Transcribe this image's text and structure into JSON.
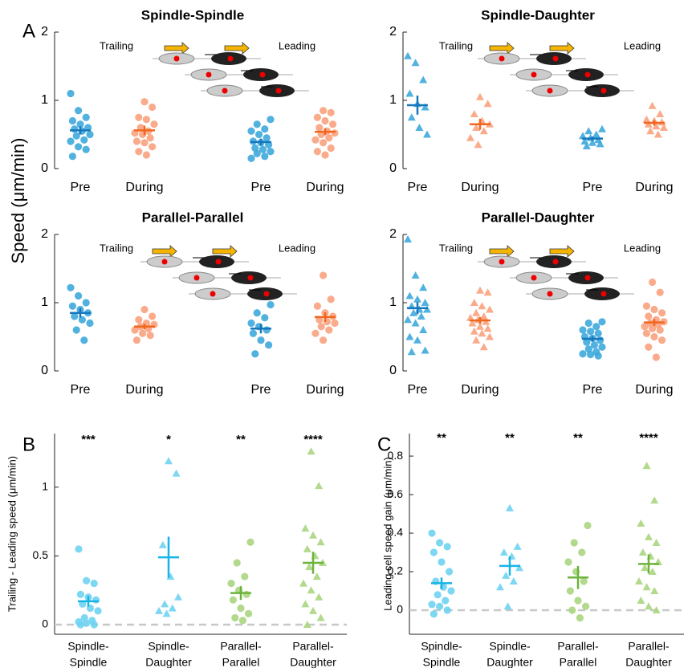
{
  "chart_data": [
    {
      "type": "strip",
      "panel_label": "A",
      "title": "Spindle-Spindle",
      "ylabel": "Speed (μm/min)",
      "annotations": [
        "Trailing",
        "Leading"
      ],
      "categories": [
        "Pre",
        "During",
        "Pre",
        "During"
      ],
      "ylim": [
        0,
        2
      ],
      "yticks": [
        0,
        1,
        2
      ],
      "groups": [
        {
          "color": "#3ea8dc",
          "mean_color": "#1677bd",
          "marker": "circle",
          "values": [
            1.1,
            0.85,
            0.75,
            0.7,
            0.65,
            0.6,
            0.58,
            0.55,
            0.5,
            0.48,
            0.42,
            0.4,
            0.32,
            0.28,
            0.18
          ],
          "mean": 0.56,
          "error": 0.06
        },
        {
          "color": "#f9a27e",
          "mean_color": "#f0661e",
          "marker": "circle",
          "values": [
            0.98,
            0.9,
            0.75,
            0.72,
            0.65,
            0.6,
            0.55,
            0.52,
            0.5,
            0.45,
            0.4,
            0.38,
            0.32,
            0.25,
            0.2
          ],
          "mean": 0.56,
          "error": 0.07
        },
        {
          "color": "#3ea8dc",
          "mean_color": "#1677bd",
          "marker": "circle",
          "values": [
            0.72,
            0.65,
            0.58,
            0.55,
            0.5,
            0.45,
            0.4,
            0.38,
            0.35,
            0.3,
            0.28,
            0.25,
            0.22,
            0.18,
            0.15
          ],
          "mean": 0.39,
          "error": 0.05
        },
        {
          "color": "#f9a27e",
          "mean_color": "#f0661e",
          "marker": "circle",
          "values": [
            0.85,
            0.82,
            0.75,
            0.7,
            0.65,
            0.6,
            0.55,
            0.52,
            0.5,
            0.45,
            0.42,
            0.38,
            0.3,
            0.25,
            0.2
          ],
          "mean": 0.54,
          "error": 0.05
        }
      ]
    },
    {
      "type": "strip",
      "title": "Spindle-Daughter",
      "annotations": [
        "Trailing",
        "Leading"
      ],
      "categories": [
        "Pre",
        "During",
        "Pre",
        "During"
      ],
      "ylim": [
        0,
        2
      ],
      "yticks": [
        0,
        1,
        2
      ],
      "groups": [
        {
          "color": "#3ea8dc",
          "mean_color": "#1677bd",
          "marker": "triangle",
          "values": [
            1.65,
            1.55,
            1.3,
            1.1,
            0.95,
            0.9,
            0.75,
            0.6,
            0.5
          ],
          "mean": 0.93,
          "error": 0.14
        },
        {
          "color": "#f9a27e",
          "mean_color": "#f0661e",
          "marker": "triangle",
          "values": [
            1.05,
            0.95,
            0.8,
            0.7,
            0.65,
            0.6,
            0.55,
            0.45,
            0.35
          ],
          "mean": 0.65,
          "error": 0.08
        },
        {
          "color": "#3ea8dc",
          "mean_color": "#1677bd",
          "marker": "triangle",
          "values": [
            0.58,
            0.55,
            0.5,
            0.48,
            0.45,
            0.42,
            0.4,
            0.38,
            0.36,
            0.33
          ],
          "mean": 0.44,
          "error": 0.03
        },
        {
          "color": "#f9a27e",
          "mean_color": "#f0661e",
          "marker": "triangle",
          "values": [
            0.92,
            0.8,
            0.72,
            0.7,
            0.68,
            0.65,
            0.62,
            0.6,
            0.55,
            0.5
          ],
          "mean": 0.67,
          "error": 0.04
        }
      ]
    },
    {
      "type": "strip",
      "title": "Parallel-Parallel",
      "annotations": [
        "Trailing",
        "Leading"
      ],
      "categories": [
        "Pre",
        "During",
        "Pre",
        "During"
      ],
      "ylim": [
        0,
        2
      ],
      "yticks": [
        0,
        1,
        2
      ],
      "groups": [
        {
          "color": "#3ea8dc",
          "mean_color": "#1677bd",
          "marker": "circle",
          "values": [
            1.22,
            1.1,
            1.0,
            0.95,
            0.9,
            0.85,
            0.8,
            0.75,
            0.7,
            0.6,
            0.45
          ],
          "mean": 0.85,
          "error": 0.07
        },
        {
          "color": "#f9a27e",
          "mean_color": "#f0661e",
          "marker": "circle",
          "values": [
            0.9,
            0.8,
            0.75,
            0.7,
            0.68,
            0.65,
            0.62,
            0.6,
            0.55,
            0.52,
            0.45
          ],
          "mean": 0.65,
          "error": 0.04
        },
        {
          "color": "#3ea8dc",
          "mean_color": "#1677bd",
          "marker": "circle",
          "values": [
            0.97,
            0.85,
            0.78,
            0.7,
            0.65,
            0.6,
            0.55,
            0.45,
            0.38,
            0.25
          ],
          "mean": 0.62,
          "error": 0.07
        },
        {
          "color": "#f9a27e",
          "mean_color": "#f0661e",
          "marker": "circle",
          "values": [
            1.4,
            1.05,
            0.95,
            0.85,
            0.8,
            0.75,
            0.72,
            0.7,
            0.65,
            0.6,
            0.55,
            0.45
          ],
          "mean": 0.79,
          "error": 0.07
        }
      ]
    },
    {
      "type": "strip",
      "title": "Parallel-Daughter",
      "annotations": [
        "Trailing",
        "Leading"
      ],
      "categories": [
        "Pre",
        "During",
        "Pre",
        "During"
      ],
      "ylim": [
        0,
        2
      ],
      "yticks": [
        0,
        1,
        2
      ],
      "groups": [
        {
          "color": "#3ea8dc",
          "mean_color": "#1677bd",
          "marker": "triangle",
          "values": [
            1.93,
            1.4,
            1.22,
            1.1,
            1.05,
            1.0,
            0.95,
            0.9,
            0.9,
            0.85,
            0.8,
            0.75,
            0.7,
            0.6,
            0.5,
            0.45,
            0.3,
            0.28
          ],
          "mean": 0.92,
          "error": 0.09
        },
        {
          "color": "#f9a27e",
          "mean_color": "#f0661e",
          "marker": "triangle",
          "values": [
            1.18,
            1.15,
            1.0,
            0.95,
            0.9,
            0.85,
            0.8,
            0.78,
            0.75,
            0.72,
            0.7,
            0.65,
            0.62,
            0.58,
            0.55,
            0.5,
            0.45,
            0.35
          ],
          "mean": 0.74,
          "error": 0.05
        },
        {
          "color": "#3ea8dc",
          "mean_color": "#1677bd",
          "marker": "circle",
          "values": [
            0.72,
            0.7,
            0.65,
            0.6,
            0.58,
            0.55,
            0.5,
            0.48,
            0.45,
            0.42,
            0.38,
            0.35,
            0.32,
            0.28,
            0.25,
            0.24,
            0.22
          ],
          "mean": 0.47,
          "error": 0.04
        },
        {
          "color": "#f9a27e",
          "mean_color": "#f0661e",
          "marker": "circle",
          "values": [
            1.3,
            1.15,
            0.95,
            0.9,
            0.85,
            0.8,
            0.75,
            0.72,
            0.7,
            0.68,
            0.65,
            0.62,
            0.6,
            0.55,
            0.5,
            0.45,
            0.35,
            0.2
          ],
          "mean": 0.71,
          "error": 0.05
        }
      ]
    },
    {
      "type": "strip",
      "panel_label": "B",
      "ylabel": "Trailing - Leading speed (μm/min)",
      "annotations": [
        "***",
        "*",
        "**",
        "****"
      ],
      "categories": [
        [
          "Spindle-",
          "Spindle"
        ],
        [
          "Spindle-",
          "Daughter"
        ],
        [
          "Parallel-",
          "Parallel"
        ],
        [
          "Parallel-",
          "Daughter"
        ]
      ],
      "ylim": [
        -0.07,
        1.39
      ],
      "yticks": [
        0,
        0.5,
        1
      ],
      "hline": 0,
      "groups": [
        {
          "color": "#6fd3f2",
          "mean_color": "#17b4e6",
          "marker": "circle",
          "values": [
            0.55,
            0.32,
            0.3,
            0.22,
            0.2,
            0.18,
            0.15,
            0.12,
            0.1,
            0.05,
            0.03,
            0.02,
            0.01,
            0.0,
            0.0
          ],
          "mean": 0.17,
          "error": 0.04
        },
        {
          "color": "#6fd3f2",
          "mean_color": "#17b4e6",
          "marker": "triangle",
          "values": [
            1.19,
            1.1,
            0.58,
            0.35,
            0.2,
            0.15,
            0.12,
            0.1,
            0.08
          ],
          "mean": 0.49,
          "error": 0.15
        },
        {
          "color": "#aad57f",
          "mean_color": "#6cb33c",
          "marker": "circle",
          "values": [
            0.6,
            0.45,
            0.35,
            0.3,
            0.25,
            0.22,
            0.18,
            0.12,
            0.08,
            0.05,
            0.03
          ],
          "mean": 0.23,
          "error": 0.05
        },
        {
          "color": "#aad57f",
          "mean_color": "#6cb33c",
          "marker": "triangle",
          "values": [
            1.26,
            1.01,
            0.7,
            0.65,
            0.6,
            0.55,
            0.5,
            0.45,
            0.42,
            0.35,
            0.3,
            0.25,
            0.2,
            0.15,
            0.1,
            0.05,
            0.0
          ],
          "mean": 0.45,
          "error": 0.08
        }
      ]
    },
    {
      "type": "strip",
      "panel_label": "C",
      "ylabel": "Leading cell speed gain (μm/min)",
      "annotations": [
        "**",
        "**",
        "**",
        "****"
      ],
      "categories": [
        [
          "Spindle-",
          "Spindle"
        ],
        [
          "Spindle-",
          "Daughter"
        ],
        [
          "Parallel-",
          "Parallel"
        ],
        [
          "Parallel-",
          "Daughter"
        ]
      ],
      "ylim": [
        -0.125,
        0.917
      ],
      "yticks": [
        0,
        0.2,
        0.4,
        0.6,
        0.8
      ],
      "hline": 0,
      "groups": [
        {
          "color": "#6fd3f2",
          "mean_color": "#17b4e6",
          "marker": "circle",
          "values": [
            0.4,
            0.35,
            0.33,
            0.3,
            0.25,
            0.2,
            0.15,
            0.12,
            0.1,
            0.08,
            0.05,
            0.03,
            0.02,
            0.0,
            -0.02
          ],
          "mean": 0.14,
          "error": 0.03
        },
        {
          "color": "#6fd3f2",
          "mean_color": "#17b4e6",
          "marker": "triangle",
          "values": [
            0.53,
            0.33,
            0.3,
            0.28,
            0.22,
            0.18,
            0.15,
            0.12,
            0.02
          ],
          "mean": 0.23,
          "error": 0.05
        },
        {
          "color": "#aad57f",
          "mean_color": "#6cb33c",
          "marker": "circle",
          "values": [
            0.44,
            0.35,
            0.3,
            0.25,
            0.2,
            0.15,
            0.1,
            0.05,
            0.02,
            0.0,
            -0.04
          ],
          "mean": 0.17,
          "error": 0.06
        },
        {
          "color": "#aad57f",
          "mean_color": "#6cb33c",
          "marker": "triangle",
          "values": [
            0.75,
            0.57,
            0.45,
            0.38,
            0.35,
            0.3,
            0.28,
            0.25,
            0.22,
            0.2,
            0.15,
            0.12,
            0.1,
            0.05,
            0.02,
            0.0
          ],
          "mean": 0.24,
          "error": 0.05
        }
      ]
    }
  ]
}
